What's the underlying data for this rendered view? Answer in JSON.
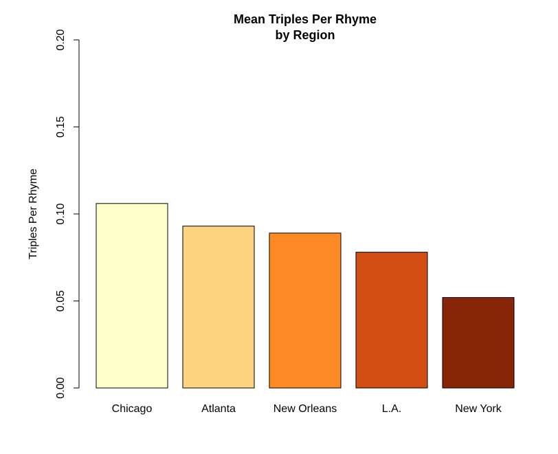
{
  "chart_data": {
    "type": "bar",
    "title_line1": "Mean Triples Per Rhyme",
    "title_line2": "by Region",
    "xlabel": "",
    "ylabel": "Triples Per Rhyme",
    "ylim": [
      0,
      0.2
    ],
    "yticks": [
      "0.00",
      "0.05",
      "0.10",
      "0.15",
      "0.20"
    ],
    "ytick_values": [
      0,
      0.05,
      0.1,
      0.15,
      0.2
    ],
    "categories": [
      "Chicago",
      "Atlanta",
      "New Orleans",
      "L.A.",
      "New York"
    ],
    "values": [
      0.106,
      0.093,
      0.089,
      0.078,
      0.052
    ],
    "colors": [
      "#FFFFCC",
      "#FDD380",
      "#FD8A24",
      "#D24E12",
      "#872508"
    ],
    "grid": false
  }
}
